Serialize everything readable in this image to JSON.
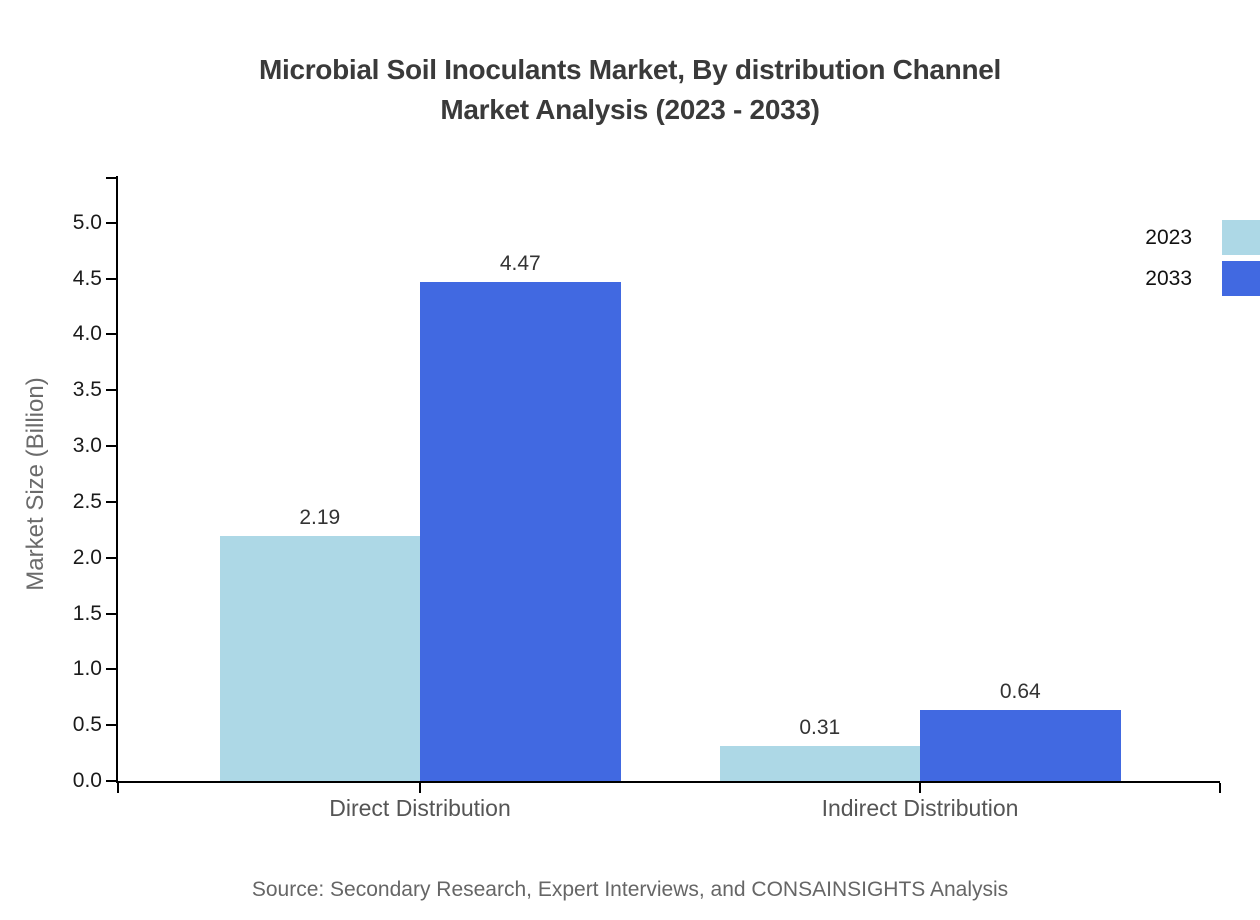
{
  "title": {
    "line1": "Microbial Soil Inoculants Market, By distribution Channel",
    "line2": "Market Analysis (2023 - 2033)"
  },
  "source": "Source: Secondary Research, Expert Interviews, and CONSAINSIGHTS Analysis",
  "chart_data": {
    "type": "bar",
    "categories": [
      "Direct Distribution",
      "Indirect Distribution"
    ],
    "series": [
      {
        "name": "2023",
        "color": "#ADD8E6",
        "values": [
          2.19,
          0.31
        ]
      },
      {
        "name": "2033",
        "color": "#4169E1",
        "values": [
          4.47,
          0.64
        ]
      }
    ],
    "title": "Microbial Soil Inoculants Market, By distribution Channel Market Analysis (2023 - 2033)",
    "xlabel": "",
    "ylabel": "Market Size (Billion)",
    "ylim": [
      0,
      5.4
    ],
    "yticks": [
      0.0,
      0.5,
      1.0,
      1.5,
      2.0,
      2.5,
      3.0,
      3.5,
      4.0,
      4.5,
      5.0
    ],
    "grid": false,
    "legend_position": "top-right",
    "value_labels": true,
    "spine_color": "#000000"
  }
}
